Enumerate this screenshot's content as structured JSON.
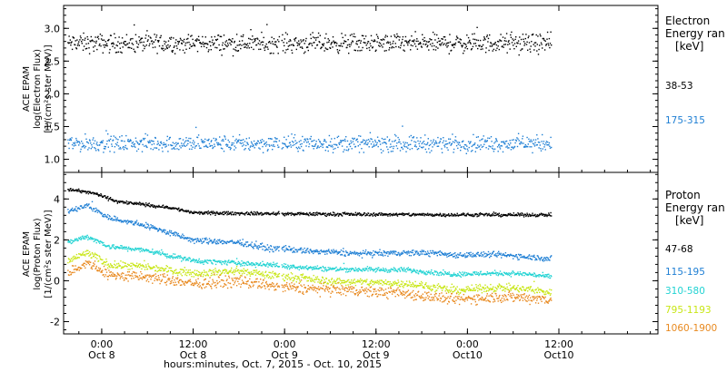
{
  "chart_data": [
    {
      "type": "scatter",
      "ylabel_lines": [
        "ACE EPAM",
        "log(Electron Flux)",
        "[1/(cm²s ster MeV)]"
      ],
      "ylim": [
        0.8,
        3.35
      ],
      "yticks": [
        1.0,
        1.5,
        2.0,
        2.5,
        3.0
      ],
      "ytick_labels": [
        "1.0",
        "1.5",
        "2.0",
        "2.5",
        "3.0"
      ],
      "legend": {
        "title_lines": [
          "Electron",
          "Energy ran",
          "[keV]"
        ],
        "placement": "right"
      },
      "series": [
        {
          "name": "38-53",
          "color": "#000000",
          "level": 2.78,
          "spread": 0.07,
          "events": []
        },
        {
          "name": "175-315",
          "color": "#1f7fd4",
          "level": 1.25,
          "spread": 0.06,
          "events": []
        }
      ]
    },
    {
      "type": "scatter",
      "ylabel_lines": [
        "ACE EPAM",
        "log(Proton Flux)",
        "[1/(cm²s ster MeV)]"
      ],
      "ylim": [
        -2.6,
        5.3
      ],
      "yticks": [
        -2,
        0,
        2,
        4
      ],
      "ytick_labels": [
        "-2",
        "0",
        "2",
        "4"
      ],
      "legend": {
        "title_lines": [
          "Proton",
          "Energy ran",
          "[keV]"
        ],
        "placement": "right"
      },
      "series": [
        {
          "name": "47-68",
          "color": "#000000",
          "spread": 0.04,
          "base": [
            [
              -4.5,
              4.5
            ],
            [
              -1,
              4.3
            ],
            [
              2,
              3.9
            ],
            [
              9,
              3.6
            ],
            [
              12,
              3.35
            ],
            [
              24,
              3.3
            ],
            [
              48,
              3.25
            ],
            [
              59,
              3.25
            ]
          ]
        },
        {
          "name": "115-195",
          "color": "#1f7fd4",
          "spread": 0.07,
          "base": [
            [
              -4.5,
              3.4
            ],
            [
              -2,
              3.7
            ],
            [
              1,
              3.1
            ],
            [
              6,
              2.7
            ],
            [
              12,
              2.0
            ],
            [
              18,
              1.9
            ],
            [
              22,
              1.6
            ],
            [
              24,
              1.6
            ],
            [
              26,
              1.5
            ],
            [
              34,
              1.35
            ],
            [
              42,
              1.4
            ],
            [
              46,
              1.3
            ],
            [
              52,
              1.3
            ],
            [
              56,
              1.2
            ],
            [
              59,
              1.1
            ]
          ]
        },
        {
          "name": "310-580",
          "color": "#22d3d3",
          "spread": 0.06,
          "base": [
            [
              -4.5,
              1.9
            ],
            [
              -2,
              2.2
            ],
            [
              1,
              1.7
            ],
            [
              6,
              1.5
            ],
            [
              12,
              1.0
            ],
            [
              18,
              0.9
            ],
            [
              22,
              0.8
            ],
            [
              24,
              0.75
            ],
            [
              30,
              0.6
            ],
            [
              40,
              0.55
            ],
            [
              46,
              0.35
            ],
            [
              52,
              0.4
            ],
            [
              56,
              0.35
            ],
            [
              59,
              0.2
            ]
          ]
        },
        {
          "name": "795-1193",
          "color": "#c8e615",
          "spread": 0.09,
          "base": [
            [
              -4.5,
              1.0
            ],
            [
              -2,
              1.4
            ],
            [
              1,
              0.8
            ],
            [
              6,
              0.7
            ],
            [
              12,
              0.4
            ],
            [
              18,
              0.5
            ],
            [
              22,
              0.3
            ],
            [
              24,
              0.25
            ],
            [
              30,
              0.0
            ],
            [
              40,
              -0.1
            ],
            [
              46,
              -0.45
            ],
            [
              52,
              -0.3
            ],
            [
              56,
              -0.4
            ],
            [
              59,
              -0.55
            ]
          ]
        },
        {
          "name": "1060-1900",
          "color": "#e8891f",
          "spread": 0.13,
          "base": [
            [
              -4.5,
              0.4
            ],
            [
              -2,
              0.9
            ],
            [
              1,
              0.3
            ],
            [
              6,
              0.2
            ],
            [
              12,
              -0.1
            ],
            [
              18,
              0.0
            ],
            [
              22,
              -0.2
            ],
            [
              24,
              -0.3
            ],
            [
              30,
              -0.4
            ],
            [
              40,
              -0.6
            ],
            [
              46,
              -0.9
            ],
            [
              52,
              -0.75
            ],
            [
              56,
              -0.8
            ],
            [
              59,
              -0.9
            ]
          ]
        }
      ]
    }
  ],
  "x_axis": {
    "tick_labels_line1": [
      "0:00",
      "12:00",
      "0:00",
      "12:00",
      "0:00",
      "12:00"
    ],
    "tick_labels_line2": [
      "Oct 8",
      "Oct 8",
      "Oct 9",
      "Oct 9",
      "Oct10",
      "Oct10"
    ],
    "tick_hours": [
      0,
      12,
      24,
      36,
      48,
      60
    ],
    "xlim_hours": [
      -5,
      73
    ],
    "data_end_hours": 59,
    "origin": "Oct. 8, 2015 0:00",
    "xlabel": "hours:minutes, Oct.  7, 2015 - Oct. 10, 2015"
  }
}
